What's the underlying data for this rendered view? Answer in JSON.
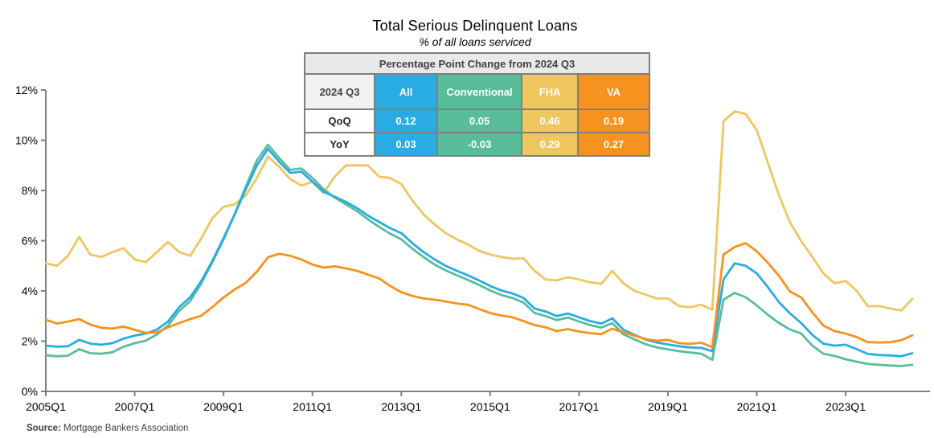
{
  "title": "Total Serious Delinquent Loans",
  "subtitle": "% of all loans serviced",
  "source": {
    "prefix": "Source:",
    "text": " Mortgage Bankers Association"
  },
  "table": {
    "header": "Percentage Point Change from 2024 Q3",
    "corner_label": "2024 Q3",
    "columns": [
      {
        "label": "All",
        "color": "#29ACE3"
      },
      {
        "label": "Conventional",
        "color": "#59BD9C"
      },
      {
        "label": "FHA",
        "color": "#EFC65F"
      },
      {
        "label": "VA",
        "color": "#F6921E"
      }
    ],
    "rows": [
      {
        "label": "QoQ",
        "values": [
          "0.12",
          "0.05",
          "0.46",
          "0.19"
        ]
      },
      {
        "label": "YoY",
        "values": [
          "0.03",
          "-0.03",
          "0.29",
          "0.27"
        ]
      }
    ]
  },
  "chart_data": {
    "type": "line",
    "title": "Total Serious Delinquent Loans",
    "subtitle": "% of all loans serviced",
    "x_start": "2005Q1",
    "x_end": "2024Q3",
    "x_tick_labels": [
      "2005Q1",
      "2007Q1",
      "2009Q1",
      "2011Q1",
      "2013Q1",
      "2015Q1",
      "2017Q1",
      "2019Q1",
      "2021Q1",
      "2023Q1"
    ],
    "y_tick_labels": [
      "0%",
      "2%",
      "4%",
      "6%",
      "8%",
      "10%",
      "12%"
    ],
    "ylim": [
      0,
      12
    ],
    "grid": false,
    "legend": "none (colors keyed to table header)",
    "axis_color": "#808080",
    "draw_order": [
      2,
      1,
      0,
      3
    ],
    "series": [
      {
        "name": "All",
        "color": "#29ACE3",
        "values": [
          1.82,
          1.78,
          1.8,
          2.05,
          1.9,
          1.86,
          1.92,
          2.1,
          2.22,
          2.3,
          2.46,
          2.78,
          3.35,
          3.75,
          4.4,
          5.2,
          6.1,
          7.05,
          8.05,
          9.0,
          9.66,
          9.15,
          8.7,
          8.75,
          8.35,
          7.95,
          7.75,
          7.55,
          7.3,
          7.0,
          6.75,
          6.5,
          6.3,
          5.9,
          5.55,
          5.25,
          5.0,
          4.8,
          4.62,
          4.42,
          4.2,
          4.02,
          3.9,
          3.72,
          3.3,
          3.18,
          3.0,
          3.1,
          2.95,
          2.8,
          2.7,
          2.91,
          2.45,
          2.25,
          2.06,
          1.95,
          1.87,
          1.8,
          1.75,
          1.73,
          1.6,
          4.45,
          5.1,
          5.0,
          4.7,
          4.15,
          3.55,
          3.1,
          2.72,
          2.25,
          1.9,
          1.82,
          1.86,
          1.68,
          1.49,
          1.45,
          1.43,
          1.4,
          1.52
        ]
      },
      {
        "name": "Conventional",
        "color": "#59BD9C",
        "values": [
          1.44,
          1.4,
          1.42,
          1.68,
          1.52,
          1.5,
          1.56,
          1.78,
          1.92,
          2.02,
          2.27,
          2.62,
          3.2,
          3.6,
          4.3,
          5.15,
          6.05,
          7.05,
          8.15,
          9.2,
          9.82,
          9.3,
          8.82,
          8.88,
          8.5,
          8.05,
          7.72,
          7.45,
          7.18,
          6.85,
          6.55,
          6.28,
          6.05,
          5.68,
          5.35,
          5.05,
          4.82,
          4.62,
          4.44,
          4.24,
          4.02,
          3.84,
          3.72,
          3.54,
          3.12,
          3.0,
          2.84,
          2.94,
          2.78,
          2.64,
          2.54,
          2.72,
          2.27,
          2.07,
          1.88,
          1.75,
          1.67,
          1.6,
          1.55,
          1.5,
          1.26,
          3.65,
          3.92,
          3.75,
          3.42,
          3.05,
          2.72,
          2.46,
          2.3,
          1.82,
          1.5,
          1.41,
          1.28,
          1.18,
          1.09,
          1.06,
          1.03,
          1.01,
          1.06
        ]
      },
      {
        "name": "FHA",
        "color": "#EFC65F",
        "values": [
          5.1,
          5.0,
          5.4,
          6.15,
          5.45,
          5.35,
          5.55,
          5.7,
          5.25,
          5.15,
          5.55,
          5.95,
          5.55,
          5.4,
          6.1,
          6.9,
          7.35,
          7.45,
          7.8,
          8.5,
          9.35,
          8.95,
          8.45,
          8.2,
          8.35,
          7.9,
          8.55,
          9.0,
          9.0,
          9.0,
          8.55,
          8.5,
          8.25,
          7.6,
          7.05,
          6.65,
          6.3,
          6.05,
          5.85,
          5.6,
          5.45,
          5.35,
          5.28,
          5.3,
          4.8,
          4.45,
          4.42,
          4.55,
          4.45,
          4.35,
          4.28,
          4.8,
          4.3,
          4.0,
          3.85,
          3.7,
          3.7,
          3.4,
          3.35,
          3.45,
          3.25,
          10.75,
          11.15,
          11.05,
          10.4,
          9.1,
          7.8,
          6.72,
          5.98,
          5.35,
          4.7,
          4.3,
          4.4,
          4.0,
          3.39,
          3.4,
          3.3,
          3.22,
          3.68
        ]
      },
      {
        "name": "VA",
        "color": "#F6921E",
        "values": [
          2.85,
          2.7,
          2.78,
          2.88,
          2.66,
          2.53,
          2.5,
          2.58,
          2.45,
          2.33,
          2.35,
          2.55,
          2.72,
          2.88,
          3.01,
          3.36,
          3.74,
          4.06,
          4.32,
          4.77,
          5.34,
          5.48,
          5.4,
          5.25,
          5.05,
          4.93,
          4.98,
          4.9,
          4.8,
          4.65,
          4.5,
          4.2,
          3.95,
          3.8,
          3.7,
          3.65,
          3.58,
          3.5,
          3.45,
          3.28,
          3.12,
          3.02,
          2.95,
          2.8,
          2.64,
          2.55,
          2.4,
          2.48,
          2.38,
          2.32,
          2.28,
          2.5,
          2.35,
          2.22,
          2.08,
          2.02,
          2.05,
          1.92,
          1.89,
          1.94,
          1.76,
          5.45,
          5.75,
          5.9,
          5.58,
          5.12,
          4.6,
          3.97,
          3.74,
          3.15,
          2.62,
          2.4,
          2.3,
          2.16,
          1.96,
          1.95,
          1.96,
          2.04,
          2.23
        ]
      }
    ]
  }
}
